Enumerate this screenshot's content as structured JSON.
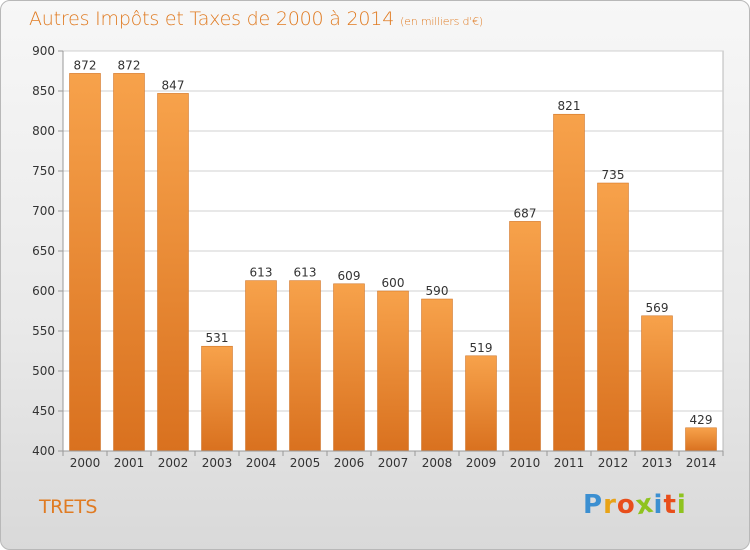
{
  "header": {
    "title": "Autres Impôts et Taxes de 2000 à 2014",
    "unit": "(en milliers d'€)"
  },
  "footer": {
    "commune": "TRETS",
    "logo_letters": [
      {
        "ch": "P",
        "color": "#3b8fd1"
      },
      {
        "ch": "r",
        "color": "#e8a317"
      },
      {
        "ch": "o",
        "color": "#e84e1b"
      },
      {
        "ch": "x",
        "color": "#8fc31f"
      },
      {
        "ch": "i",
        "color": "#3b8fd1"
      },
      {
        "ch": "t",
        "color": "#e84e1b"
      },
      {
        "ch": "i",
        "color": "#8fc31f"
      }
    ]
  },
  "chart_data": {
    "type": "bar",
    "title": "Autres Impôts et Taxes de 2000 à 2014",
    "subtitle": "(en milliers d'€)",
    "xlabel": "",
    "ylabel": "",
    "categories": [
      "2000",
      "2001",
      "2002",
      "2003",
      "2004",
      "2005",
      "2006",
      "2007",
      "2008",
      "2009",
      "2010",
      "2011",
      "2012",
      "2013",
      "2014"
    ],
    "values": [
      872,
      872,
      847,
      531,
      613,
      613,
      609,
      600,
      590,
      519,
      687,
      821,
      735,
      569,
      429
    ],
    "ylim": [
      400,
      900
    ],
    "yticks": [
      400,
      450,
      500,
      550,
      600,
      650,
      700,
      750,
      800,
      850,
      900
    ],
    "grid": true,
    "colors": {
      "bar_light": "#f7a24b",
      "bar_dark": "#d9711f",
      "axis": "#999999",
      "grid": "#d0d0d0"
    }
  }
}
